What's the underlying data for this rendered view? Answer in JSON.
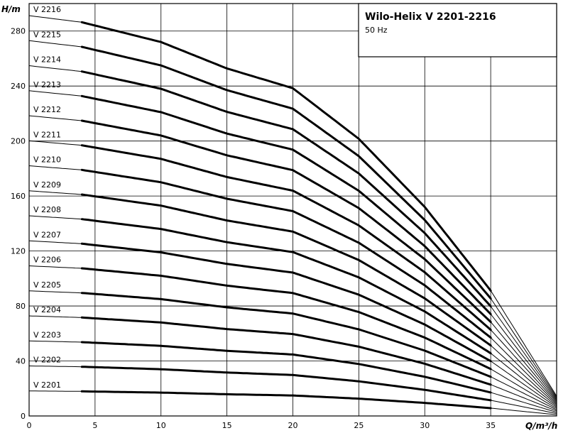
{
  "chart_data": {
    "type": "line",
    "title": "Wilo-Helix V 2201-2216",
    "subtitle": "50 Hz",
    "xlabel": "Q/m³/h",
    "ylabel": "H/m",
    "xlim": [
      0,
      40
    ],
    "ylim": [
      0,
      300
    ],
    "xticks": [
      0,
      5,
      10,
      15,
      20,
      25,
      30,
      35,
      40
    ],
    "yticks": [
      0,
      40,
      80,
      120,
      160,
      200,
      240,
      280
    ],
    "grid": true,
    "operating_range": [
      4,
      35
    ],
    "runout_q": 40,
    "stage_head_points": {
      "q": [
        0,
        4,
        10,
        15,
        20,
        25,
        30,
        35,
        40
      ],
      "h": [
        18.2,
        17.9,
        17.0,
        15.8,
        14.9,
        12.6,
        9.5,
        5.7,
        0.9
      ]
    },
    "series": [
      {
        "name": "V 2201",
        "stages": 1
      },
      {
        "name": "V 2202",
        "stages": 2
      },
      {
        "name": "V 2203",
        "stages": 3
      },
      {
        "name": "V 2204",
        "stages": 4
      },
      {
        "name": "V 2205",
        "stages": 5
      },
      {
        "name": "V 2206",
        "stages": 6
      },
      {
        "name": "V 2207",
        "stages": 7
      },
      {
        "name": "V 2208",
        "stages": 8
      },
      {
        "name": "V 2209",
        "stages": 9
      },
      {
        "name": "V 2210",
        "stages": 10
      },
      {
        "name": "V 2211",
        "stages": 11
      },
      {
        "name": "V 2212",
        "stages": 12
      },
      {
        "name": "V 2213",
        "stages": 13
      },
      {
        "name": "V 2214",
        "stages": 14
      },
      {
        "name": "V 2215",
        "stages": 15
      },
      {
        "name": "V 2216",
        "stages": 16
      }
    ]
  }
}
